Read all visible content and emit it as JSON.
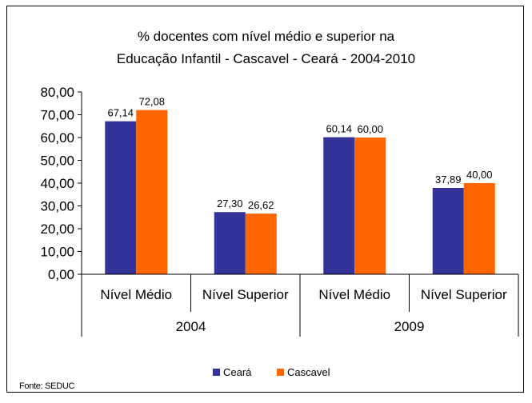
{
  "title_line1": "% docentes com nível médio e superior na",
  "title_line2": "Educação Infantil - Cascavel -  Ceará - 2004-2010",
  "source": "Fonte: SEDUC",
  "chart_data": {
    "type": "bar",
    "title": "% docentes com nível médio e superior na Educação Infantil - Cascavel -  Ceará - 2004-2010",
    "categories": [
      "Nível Médio",
      "Nível Superior",
      "Nível Médio",
      "Nível Superior"
    ],
    "groups": [
      {
        "label": "2004",
        "categories": [
          "Nível Médio",
          "Nível Superior"
        ]
      },
      {
        "label": "2009",
        "categories": [
          "Nível Médio",
          "Nível Superior"
        ]
      }
    ],
    "series": [
      {
        "name": "Ceará",
        "color": "#333399",
        "values": [
          67.14,
          27.3,
          60.14,
          37.89
        ],
        "labels": [
          "67,14",
          "27,30",
          "60,14",
          "37,89"
        ]
      },
      {
        "name": "Cascavel",
        "color": "#FF6600",
        "values": [
          72.08,
          26.62,
          60.0,
          40.0
        ],
        "labels": [
          "72,08",
          "26,62",
          "60,00",
          "40,00"
        ]
      }
    ],
    "ylim": [
      0,
      80
    ],
    "yticks": [
      "0,00",
      "10,00",
      "20,00",
      "30,00",
      "40,00",
      "50,00",
      "60,00",
      "70,00",
      "80,00"
    ],
    "legend_position": "bottom",
    "grid": false
  }
}
